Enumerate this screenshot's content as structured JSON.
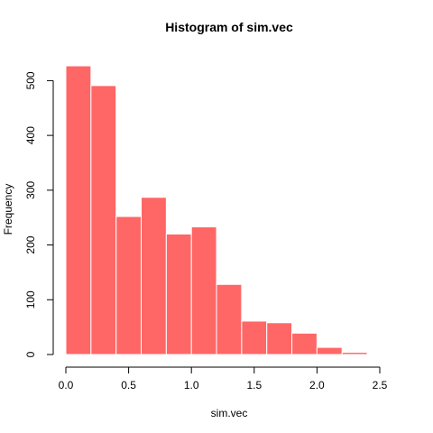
{
  "chart_data": {
    "type": "bar",
    "title": "Histogram of sim.vec",
    "xlabel": "sim.vec",
    "ylabel": "Frequency",
    "bins": [
      {
        "start": 0.0,
        "end": 0.2,
        "value": 527
      },
      {
        "start": 0.2,
        "end": 0.4,
        "value": 491
      },
      {
        "start": 0.4,
        "end": 0.6,
        "value": 252
      },
      {
        "start": 0.6,
        "end": 0.8,
        "value": 287
      },
      {
        "start": 0.8,
        "end": 1.0,
        "value": 220
      },
      {
        "start": 1.0,
        "end": 1.2,
        "value": 233
      },
      {
        "start": 1.2,
        "end": 1.4,
        "value": 128
      },
      {
        "start": 1.4,
        "end": 1.6,
        "value": 61
      },
      {
        "start": 1.6,
        "end": 1.8,
        "value": 58
      },
      {
        "start": 1.8,
        "end": 2.0,
        "value": 39
      },
      {
        "start": 2.0,
        "end": 2.2,
        "value": 13
      },
      {
        "start": 2.2,
        "end": 2.4,
        "value": 4
      }
    ],
    "xlim": [
      0.0,
      2.5
    ],
    "ylim": [
      0,
      527
    ],
    "xticks": [
      "0.0",
      "0.5",
      "1.0",
      "1.5",
      "2.0",
      "2.5"
    ],
    "yticks": [
      "0",
      "100",
      "200",
      "300",
      "400",
      "500"
    ],
    "bar_color": "#ff6666",
    "border_color": "#ffffff",
    "grid": false
  }
}
